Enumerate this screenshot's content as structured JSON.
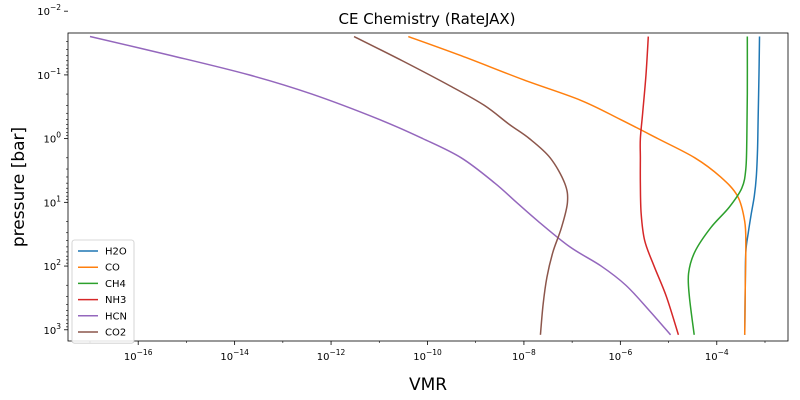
{
  "chart_data": {
    "type": "line",
    "title": "CE Chemistry (RateJAX)",
    "xlabel": "VMR",
    "ylabel": "pressure [bar]",
    "xscale": "log",
    "yscale": "log",
    "y_inverted": true,
    "xlim": [
      3.5e-18,
      0.003
    ],
    "ylim": [
      1500,
      0.022
    ],
    "xticks": [
      {
        "value": 1e-16,
        "base": "10",
        "exp": "−16"
      },
      {
        "value": 1e-14,
        "base": "10",
        "exp": "−14"
      },
      {
        "value": 1e-12,
        "base": "10",
        "exp": "−12"
      },
      {
        "value": 1e-10,
        "base": "10",
        "exp": "−10"
      },
      {
        "value": 1e-08,
        "base": "10",
        "exp": "−8"
      },
      {
        "value": 1e-06,
        "base": "10",
        "exp": "−6"
      },
      {
        "value": 0.0001,
        "base": "10",
        "exp": "−4"
      }
    ],
    "yticks": [
      {
        "value": 0.01,
        "base": "10",
        "exp": "−2"
      },
      {
        "value": 0.1,
        "base": "10",
        "exp": "−1"
      },
      {
        "value": 1,
        "base": "10",
        "exp": "0"
      },
      {
        "value": 10,
        "base": "10",
        "exp": "1"
      },
      {
        "value": 100,
        "base": "10",
        "exp": "2"
      },
      {
        "value": 1000,
        "base": "10",
        "exp": "3"
      }
    ],
    "grid": false,
    "legend_position": "lower-left",
    "series": [
      {
        "name": "H2O",
        "color": "#1f77b4",
        "points": [
          [
            0.00077,
            0.025
          ],
          [
            0.00075,
            0.1
          ],
          [
            0.00072,
            0.5
          ],
          [
            0.0007,
            1.5
          ],
          [
            0.00066,
            4
          ],
          [
            0.0006,
            8
          ],
          [
            0.00052,
            15
          ],
          [
            0.00045,
            30
          ],
          [
            0.0004,
            60
          ],
          [
            0.00039,
            200
          ],
          [
            0.00038,
            1200
          ]
        ]
      },
      {
        "name": "CO",
        "color": "#ff7f0e",
        "points": [
          [
            4e-11,
            0.025
          ],
          [
            5e-10,
            0.05
          ],
          [
            1e-08,
            0.12
          ],
          [
            1.5e-07,
            0.25
          ],
          [
            1e-06,
            0.5
          ],
          [
            6e-06,
            1
          ],
          [
            3.5e-05,
            2
          ],
          [
            0.00012,
            4
          ],
          [
            0.00027,
            8
          ],
          [
            0.00038,
            20
          ],
          [
            0.0004,
            50
          ],
          [
            0.00039,
            200
          ],
          [
            0.00038,
            1200
          ]
        ]
      },
      {
        "name": "CH4",
        "color": "#2ca02c",
        "points": [
          [
            0.00043,
            0.025
          ],
          [
            0.00043,
            0.2
          ],
          [
            0.00042,
            1
          ],
          [
            0.0004,
            3
          ],
          [
            0.00033,
            6
          ],
          [
            0.00018,
            12
          ],
          [
            7.5e-05,
            25
          ],
          [
            3.5e-05,
            60
          ],
          [
            2.6e-05,
            130
          ],
          [
            2.7e-05,
            300
          ],
          [
            3.4e-05,
            1200
          ]
        ]
      },
      {
        "name": "NH3",
        "color": "#d62728",
        "points": [
          [
            3.8e-06,
            0.025
          ],
          [
            3.4e-06,
            0.1
          ],
          [
            2.9e-06,
            0.4
          ],
          [
            2.6e-06,
            1
          ],
          [
            2.6e-06,
            2
          ],
          [
            2.6e-06,
            5
          ],
          [
            2.7e-06,
            15
          ],
          [
            3.2e-06,
            40
          ],
          [
            5e-06,
            100
          ],
          [
            9e-06,
            300
          ],
          [
            1.6e-05,
            1200
          ]
        ]
      },
      {
        "name": "HCN",
        "color": "#9467bd",
        "points": [
          [
            1e-17,
            0.025
          ],
          [
            5e-16,
            0.05
          ],
          [
            2e-14,
            0.1
          ],
          [
            4e-13,
            0.2
          ],
          [
            1e-11,
            0.5
          ],
          [
            8e-11,
            1
          ],
          [
            5e-10,
            2
          ],
          [
            2.5e-09,
            5
          ],
          [
            7e-09,
            10
          ],
          [
            2e-08,
            20
          ],
          [
            9e-08,
            50
          ],
          [
            4e-07,
            100
          ],
          [
            1.3e-06,
            200
          ],
          [
            4e-06,
            500
          ],
          [
            1.1e-05,
            1200
          ]
        ]
      },
      {
        "name": "CO2",
        "color": "#8c564b",
        "points": [
          [
            3e-12,
            0.025
          ],
          [
            3e-11,
            0.06
          ],
          [
            3e-10,
            0.15
          ],
          [
            1.5e-09,
            0.3
          ],
          [
            5e-09,
            0.6
          ],
          [
            1.3e-08,
            1
          ],
          [
            3.5e-08,
            2
          ],
          [
            7e-08,
            5
          ],
          [
            8e-08,
            10
          ],
          [
            6e-08,
            25
          ],
          [
            4e-08,
            60
          ],
          [
            3e-08,
            150
          ],
          [
            2.5e-08,
            400
          ],
          [
            2.2e-08,
            1200
          ]
        ]
      }
    ]
  }
}
